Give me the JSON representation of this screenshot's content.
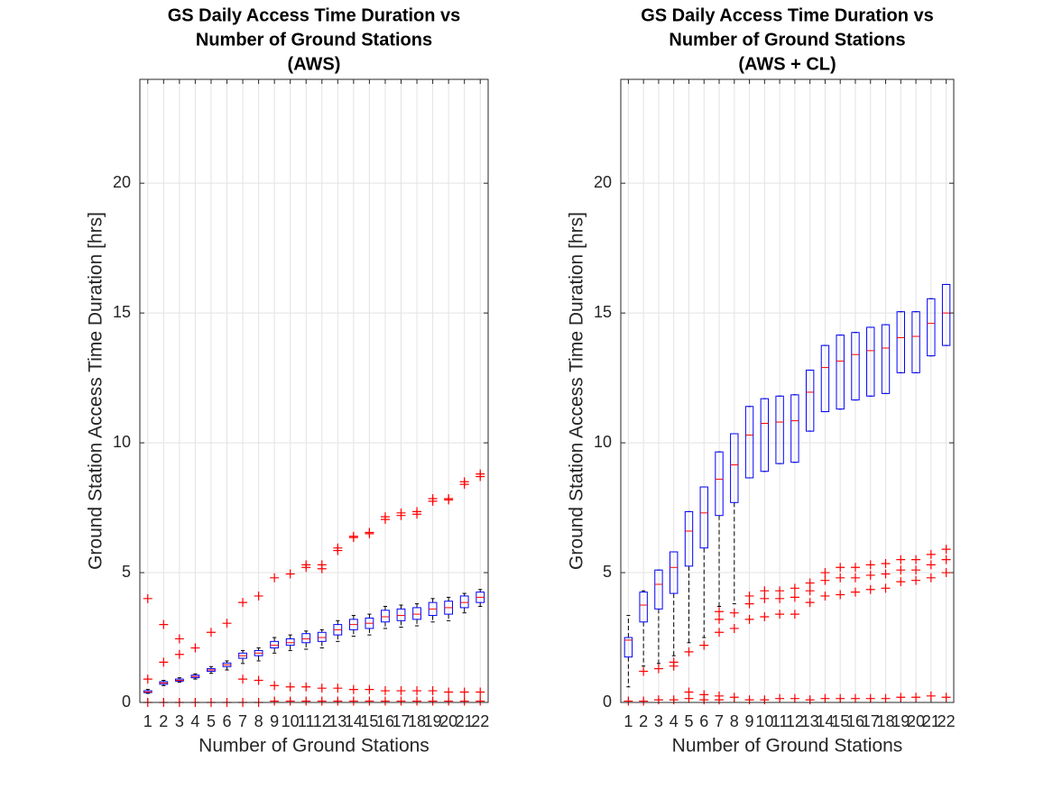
{
  "chart_data": [
    {
      "type": "box",
      "title": [
        "GS Daily Access Time Duration vs",
        "Number of Ground Stations",
        "(AWS)"
      ],
      "xlabel": "Number of Ground Stations",
      "ylabel": "Ground Station Access Time Duration [hrs]",
      "categories": [
        "1",
        "2",
        "3",
        "4",
        "5",
        "6",
        "7",
        "8",
        "9",
        "10",
        "11",
        "12",
        "13",
        "14",
        "15",
        "16",
        "17",
        "18",
        "19",
        "20",
        "21",
        "22"
      ],
      "min": [
        0.35,
        0.65,
        0.78,
        0.9,
        1.12,
        1.25,
        1.5,
        1.6,
        1.9,
        2.0,
        2.05,
        2.1,
        2.35,
        2.55,
        2.6,
        2.85,
        2.9,
        2.95,
        3.1,
        3.15,
        3.45,
        3.7
      ],
      "q1": [
        0.38,
        0.7,
        0.82,
        0.95,
        1.2,
        1.38,
        1.7,
        1.8,
        2.1,
        2.2,
        2.3,
        2.35,
        2.6,
        2.8,
        2.85,
        3.1,
        3.15,
        3.2,
        3.35,
        3.4,
        3.65,
        3.85
      ],
      "median": [
        0.4,
        0.75,
        0.85,
        1.0,
        1.25,
        1.45,
        1.8,
        1.9,
        2.2,
        2.3,
        2.45,
        2.5,
        2.8,
        3.0,
        3.05,
        3.3,
        3.35,
        3.4,
        3.6,
        3.65,
        3.85,
        4.05
      ],
      "q3": [
        0.45,
        0.8,
        0.9,
        1.05,
        1.3,
        1.52,
        1.9,
        2.0,
        2.35,
        2.45,
        2.65,
        2.7,
        3.0,
        3.2,
        3.25,
        3.55,
        3.6,
        3.65,
        3.85,
        3.9,
        4.1,
        4.25
      ],
      "max": [
        0.5,
        0.85,
        0.95,
        1.1,
        1.38,
        1.6,
        2.0,
        2.1,
        2.5,
        2.6,
        2.75,
        2.8,
        3.15,
        3.35,
        3.4,
        3.7,
        3.75,
        3.8,
        4.0,
        4.05,
        4.2,
        4.35
      ],
      "outliers": [
        [
          4.0,
          0.9,
          0
        ],
        [
          3.0,
          1.55,
          0
        ],
        [
          2.45,
          1.85,
          0
        ],
        [
          2.1,
          0
        ],
        [
          2.7,
          0
        ],
        [
          3.05,
          0
        ],
        [
          3.85,
          0.9,
          0
        ],
        [
          4.1,
          0.85,
          0
        ],
        [
          4.8,
          0.65,
          0.05
        ],
        [
          4.95,
          0.6,
          0.05
        ],
        [
          5.3,
          5.2,
          0.6,
          0.05
        ],
        [
          5.3,
          5.15,
          0.55,
          0.05
        ],
        [
          5.95,
          5.85,
          0.55,
          0.05
        ],
        [
          6.4,
          6.35,
          0.5,
          0.05
        ],
        [
          6.55,
          6.5,
          0.5,
          0.05
        ],
        [
          7.15,
          7.05,
          0.45,
          0.05
        ],
        [
          7.3,
          7.2,
          0.45,
          0.05
        ],
        [
          7.35,
          7.25,
          0.45,
          0.05
        ],
        [
          7.85,
          7.75,
          0.45,
          0.05
        ],
        [
          7.85,
          7.8,
          0.4,
          0.05
        ],
        [
          8.5,
          8.4,
          0.4,
          0.05
        ],
        [
          8.8,
          8.7,
          0.4,
          0.05
        ]
      ],
      "box_color": "#0000ff",
      "median_color": "#ff0000",
      "whisker_color": "#000000",
      "outlier_color": "#ff0000",
      "ylim": [
        0,
        24
      ],
      "yticks": [
        0,
        5,
        10,
        15,
        20
      ],
      "grid": true
    },
    {
      "type": "box",
      "title": [
        "GS Daily Access Time Duration vs",
        "Number of Ground Stations",
        "(AWS + CL)"
      ],
      "xlabel": "Number of Ground Stations",
      "ylabel": "Ground Station Access Time Duration [hrs]",
      "categories": [
        "1",
        "2",
        "3",
        "4",
        "5",
        "6",
        "7",
        "8",
        "9",
        "10",
        "11",
        "12",
        "13",
        "14",
        "15",
        "16",
        "17",
        "18",
        "19",
        "20",
        "21",
        "22"
      ],
      "min": [
        0.6,
        1.4,
        1.5,
        1.8,
        2.3,
        2.5,
        3.7,
        3.8,
        8.65,
        8.9,
        9.2,
        9.25,
        10.45,
        11.2,
        11.3,
        11.65,
        11.8,
        11.9,
        12.7,
        12.7,
        13.35,
        13.75
      ],
      "q1": [
        1.75,
        3.1,
        3.6,
        4.2,
        5.25,
        5.95,
        7.2,
        7.7,
        8.65,
        8.9,
        9.2,
        9.25,
        10.45,
        11.2,
        11.3,
        11.65,
        11.8,
        11.9,
        12.7,
        12.7,
        13.35,
        13.75
      ],
      "median": [
        2.4,
        3.75,
        4.55,
        5.2,
        6.6,
        7.3,
        8.6,
        9.15,
        10.3,
        10.75,
        10.8,
        10.85,
        11.95,
        12.9,
        13.15,
        13.4,
        13.55,
        13.65,
        14.05,
        14.1,
        14.6,
        15.0
      ],
      "q3": [
        2.5,
        4.25,
        5.1,
        5.8,
        7.35,
        8.3,
        9.65,
        10.35,
        11.4,
        11.7,
        11.8,
        11.85,
        12.8,
        13.75,
        14.15,
        14.25,
        14.45,
        14.55,
        15.05,
        15.05,
        15.55,
        16.1
      ],
      "max": [
        3.35,
        4.3,
        5.1,
        5.8,
        7.35,
        8.3,
        9.65,
        10.35,
        11.4,
        11.7,
        11.8,
        11.85,
        12.8,
        13.75,
        14.15,
        14.25,
        14.45,
        14.55,
        15.05,
        15.05,
        15.55,
        16.1
      ],
      "outliers": [
        [
          0.05
        ],
        [
          1.2,
          0.05
        ],
        [
          1.3,
          0.1
        ],
        [
          1.55,
          1.4,
          0.1
        ],
        [
          1.95,
          0.4,
          0.15
        ],
        [
          2.2,
          0.3,
          0.1
        ],
        [
          3.5,
          3.2,
          2.7,
          0.25,
          0.1
        ],
        [
          3.45,
          2.85,
          0.2
        ],
        [
          4.1,
          3.8,
          3.2,
          0.1
        ],
        [
          4.3,
          4.0,
          3.3,
          0.1
        ],
        [
          4.3,
          4.0,
          3.4,
          0.15
        ],
        [
          4.4,
          4.05,
          3.4,
          0.15
        ],
        [
          4.6,
          4.3,
          3.85,
          0.1
        ],
        [
          5.0,
          4.7,
          4.1,
          0.15
        ],
        [
          5.2,
          4.8,
          4.15,
          0.15
        ],
        [
          5.2,
          4.8,
          4.25,
          0.15
        ],
        [
          5.3,
          4.9,
          4.35,
          0.15
        ],
        [
          5.35,
          4.95,
          4.4,
          0.15
        ],
        [
          5.5,
          5.1,
          4.65,
          0.2
        ],
        [
          5.5,
          5.1,
          4.7,
          0.2
        ],
        [
          5.7,
          5.3,
          4.8,
          0.25
        ],
        [
          5.9,
          5.5,
          5.0,
          0.2
        ]
      ],
      "box_color": "#0000ff",
      "median_color": "#ff0000",
      "whisker_color": "#000000",
      "outlier_color": "#ff0000",
      "ylim": [
        0,
        24
      ],
      "yticks": [
        0,
        5,
        10,
        15,
        20
      ],
      "grid": true
    }
  ]
}
